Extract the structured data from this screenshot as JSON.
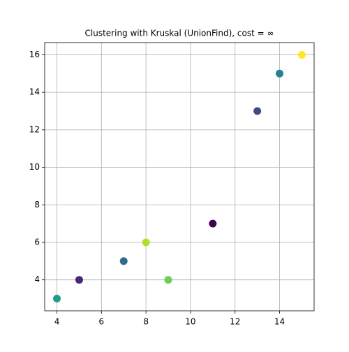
{
  "chart_data": {
    "type": "scatter",
    "title": "Clustering with Kruskal (UnionFind), cost = ∞",
    "x": [
      4,
      5,
      7,
      8,
      9,
      11,
      13,
      14,
      15
    ],
    "values": [
      3,
      4,
      5,
      6,
      4,
      7,
      13,
      15,
      16
    ],
    "colors": [
      "#1f9e89",
      "#482878",
      "#31688e",
      "#b5de2b",
      "#6ece58",
      "#440154",
      "#3e4989",
      "#26828e",
      "#fde725"
    ],
    "xlim": [
      3.45,
      15.55
    ],
    "xticks": [
      4,
      6,
      8,
      10,
      12,
      14
    ],
    "ylim": [
      2.35,
      16.65
    ],
    "yticks": [
      4,
      6,
      8,
      10,
      12,
      14,
      16
    ],
    "grid": true
  }
}
